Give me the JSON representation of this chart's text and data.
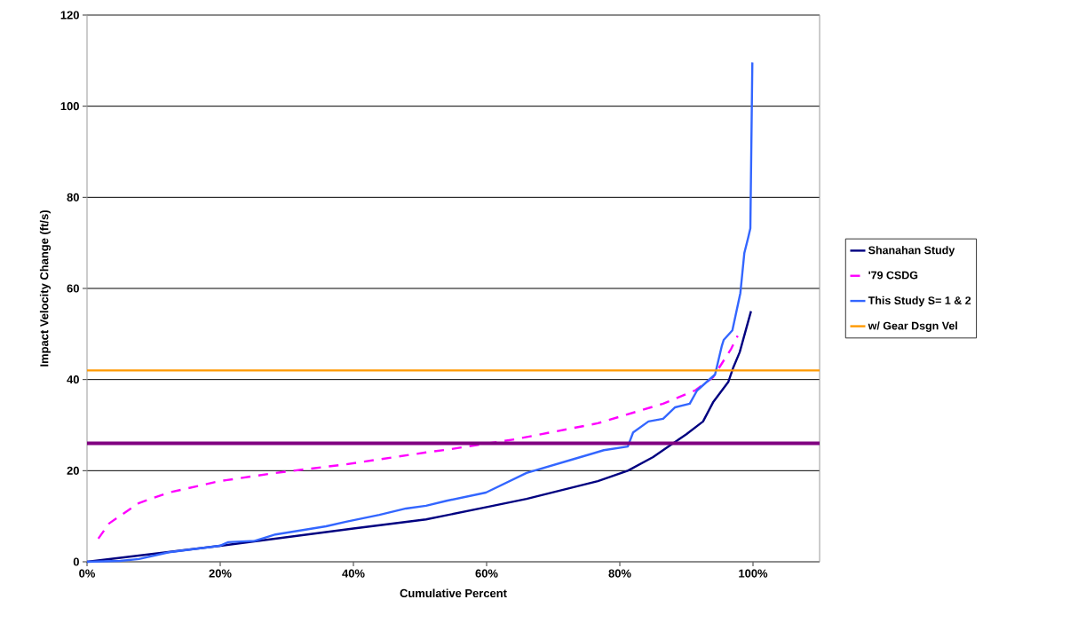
{
  "chart_data": {
    "type": "line",
    "xlabel": "Cumulative Percent",
    "ylabel": "Impact Velocity Change (ft/s)",
    "xlim": [
      0,
      110
    ],
    "ylim": [
      0,
      120
    ],
    "xticks": [
      {
        "value": 0,
        "label": "0%"
      },
      {
        "value": 20,
        "label": "20%"
      },
      {
        "value": 40,
        "label": "40%"
      },
      {
        "value": 60,
        "label": "60%"
      },
      {
        "value": 80,
        "label": "80%"
      },
      {
        "value": 100,
        "label": "100%"
      }
    ],
    "yticks": [
      0,
      20,
      40,
      60,
      80,
      100,
      120
    ],
    "grid": "y",
    "legend": "right",
    "series": [
      {
        "name": "Shanahan Study",
        "color": "#000080",
        "x": [
          0,
          20,
          40,
          50.9,
          60,
          66,
          76.7,
          81.2,
          85,
          87.9,
          90,
          92.5,
          94,
          96.3,
          97,
          98,
          99.7
        ],
        "values": [
          0,
          3.5,
          7.3,
          9.3,
          12,
          13.8,
          17.7,
          20,
          23,
          25.9,
          28,
          30.8,
          35,
          39.5,
          42.5,
          46,
          55
        ]
      },
      {
        "name": "'79 CSDG",
        "color": "#ff00ff",
        "line_style": "dashed",
        "x": [
          1.7,
          3.3,
          7.8,
          12.3,
          19.9,
          28.3,
          38.9,
          50.9,
          54,
          64.3,
          76.7,
          86.5,
          91.3,
          94,
          96.7,
          97.7
        ],
        "values": [
          5.1,
          8.4,
          12.9,
          15.2,
          17.7,
          19.5,
          21.4,
          24,
          24.6,
          26.9,
          30.4,
          34.7,
          37.6,
          40.5,
          46.7,
          49.6
        ]
      },
      {
        "name": "This Study S= 1 & 2",
        "color": "#3366ff",
        "x": [
          0,
          5,
          7.8,
          12.3,
          19.9,
          21.2,
          25.2,
          28.3,
          35.9,
          38.9,
          43.9,
          47.9,
          50.9,
          54,
          59.9,
          66,
          73.2,
          77.6,
          81.2,
          82,
          84.3,
          86.5,
          88.3,
          90.5,
          91.6,
          94.3,
          95.3,
          95.6,
          96.9,
          98.1,
          98.7,
          99.3,
          99.6,
          99.9
        ],
        "values": [
          0,
          0.2,
          0.6,
          2.1,
          3.5,
          4.3,
          4.6,
          6,
          7.8,
          8.8,
          10.3,
          11.7,
          12.3,
          13.4,
          15.2,
          19.5,
          22.6,
          24.5,
          25.3,
          28.4,
          30.8,
          31.4,
          33.9,
          34.7,
          37.6,
          41.1,
          47.3,
          48.7,
          50.8,
          59,
          67.8,
          71.3,
          73.2,
          109.6
        ]
      },
      {
        "name": "w/ Gear Dsgn Vel",
        "color": "#ff9900",
        "x": [
          0,
          110
        ],
        "values": [
          42,
          42
        ]
      }
    ],
    "ref_lines": [
      {
        "axis": "y",
        "value": 26,
        "color": "#800080"
      }
    ]
  }
}
